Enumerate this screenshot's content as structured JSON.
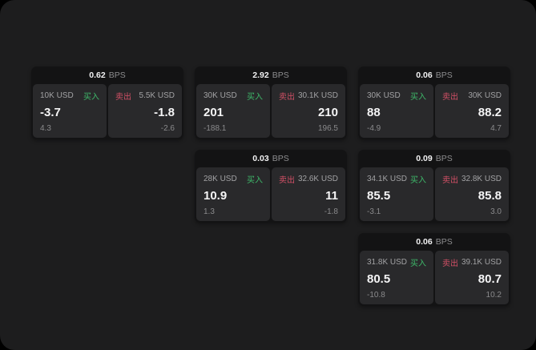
{
  "window": {
    "backdrop_color": "#000000",
    "surface_color": "#1d1d1e"
  },
  "labels": {
    "bps_unit": "BPS",
    "buy": "买入",
    "sell": "卖出"
  },
  "colors": {
    "buy_green": "#3eb96a",
    "sell_red": "#d25066"
  },
  "cards": [
    {
      "row": 1,
      "col": 1,
      "bps": "0.62",
      "buy": {
        "amount": "10K USD",
        "price": "-3.7",
        "delta": "4.3"
      },
      "sell": {
        "amount": "5.5K USD",
        "price": "-1.8",
        "delta": "-2.6"
      }
    },
    {
      "row": 1,
      "col": 2,
      "bps": "2.92",
      "buy": {
        "amount": "30K USD",
        "price": "201",
        "delta": "-188.1"
      },
      "sell": {
        "amount": "30.1K USD",
        "price": "210",
        "delta": "196.5"
      }
    },
    {
      "row": 1,
      "col": 3,
      "bps": "0.06",
      "buy": {
        "amount": "30K USD",
        "price": "88",
        "delta": "-4.9"
      },
      "sell": {
        "amount": "30K USD",
        "price": "88.2",
        "delta": "4.7"
      }
    },
    {
      "row": 2,
      "col": 2,
      "bps": "0.03",
      "buy": {
        "amount": "28K USD",
        "price": "10.9",
        "delta": "1.3"
      },
      "sell": {
        "amount": "32.6K USD",
        "price": "11",
        "delta": "-1.8"
      }
    },
    {
      "row": 2,
      "col": 3,
      "bps": "0.09",
      "buy": {
        "amount": "34.1K USD",
        "price": "85.5",
        "delta": "-3.1"
      },
      "sell": {
        "amount": "32.8K USD",
        "price": "85.8",
        "delta": "3.0"
      }
    },
    {
      "row": 3,
      "col": 3,
      "bps": "0.06",
      "buy": {
        "amount": "31.8K USD",
        "price": "80.5",
        "delta": "-10.8"
      },
      "sell": {
        "amount": "39.1K USD",
        "price": "80.7",
        "delta": "10.2"
      }
    }
  ]
}
